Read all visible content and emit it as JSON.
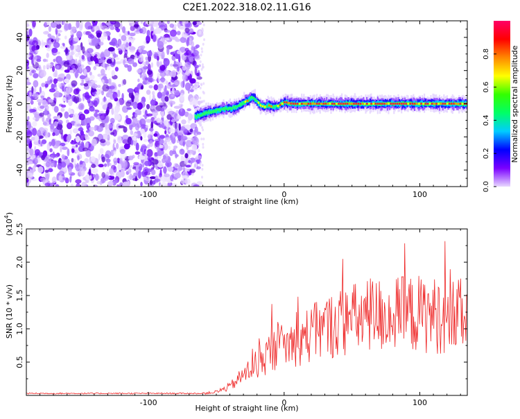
{
  "title": "C2E1.2022.318.02.11.G16",
  "chart_data": [
    {
      "type": "heatmap",
      "xlabel": "Height of straight line (km)",
      "ylabel": "Frequency (Hz)",
      "xlim": [
        -190,
        135
      ],
      "ylim": [
        -50,
        50
      ],
      "xticks": [
        -100,
        0,
        100
      ],
      "yticks": [
        -40,
        -20,
        0,
        20,
        40
      ],
      "noise_region_x": [
        -190,
        -62
      ],
      "signal_trace": {
        "x": [
          -66,
          -60,
          -55,
          -50,
          -45,
          -40,
          -35,
          -30,
          -27,
          -24,
          -21,
          -18,
          -15,
          -12,
          -8,
          -4,
          0,
          5,
          10,
          20,
          40,
          60,
          80,
          100,
          120,
          135
        ],
        "y": [
          -8,
          -6,
          -5,
          -4,
          -3,
          -3,
          -2,
          1,
          2,
          4,
          2,
          -1,
          -2,
          -1,
          -2,
          -1,
          1,
          0,
          0,
          0,
          0,
          0,
          0,
          0,
          0,
          0
        ]
      },
      "colorbar": {
        "label": "Normalized spectral amplitude",
        "range": [
          0.0,
          1.0
        ],
        "ticks": [
          "0.0",
          "0.2",
          "0.4",
          "0.6",
          "0.8"
        ],
        "colors": [
          "#e8d8ff",
          "#7a00ff",
          "#0000ff",
          "#00ccff",
          "#00ff66",
          "#33ff00",
          "#ffff00",
          "#ff8800",
          "#ff0000",
          "#ff0066"
        ]
      }
    },
    {
      "type": "line",
      "xlabel": "Height of straight line (km)",
      "ylabel": "SNR (10 * v/v)",
      "y_multiplier": "(x10",
      "y_multiplier_exp": "4",
      "y_multiplier_close": ")",
      "xlim": [
        -190,
        135
      ],
      "ylim": [
        0,
        2.5
      ],
      "xticks": [
        -100,
        0,
        100
      ],
      "yticks": [
        0.5,
        1.0,
        1.5,
        2.0,
        2.5
      ],
      "yticklabels": [
        "0.5",
        "1.0",
        "1.5",
        "2.0",
        "2.5"
      ],
      "color": "#ee2222",
      "envelope": {
        "x": [
          -190,
          -60,
          -50,
          -40,
          -30,
          -20,
          -10,
          0,
          10,
          20,
          30,
          40,
          50,
          60,
          70,
          80,
          90,
          100,
          110,
          120,
          135
        ],
        "y": [
          0.03,
          0.03,
          0.06,
          0.15,
          0.35,
          0.55,
          0.75,
          0.85,
          0.95,
          1.05,
          1.15,
          1.25,
          1.3,
          1.35,
          1.38,
          1.38,
          1.4,
          1.4,
          1.38,
          1.35,
          1.35
        ]
      }
    }
  ]
}
